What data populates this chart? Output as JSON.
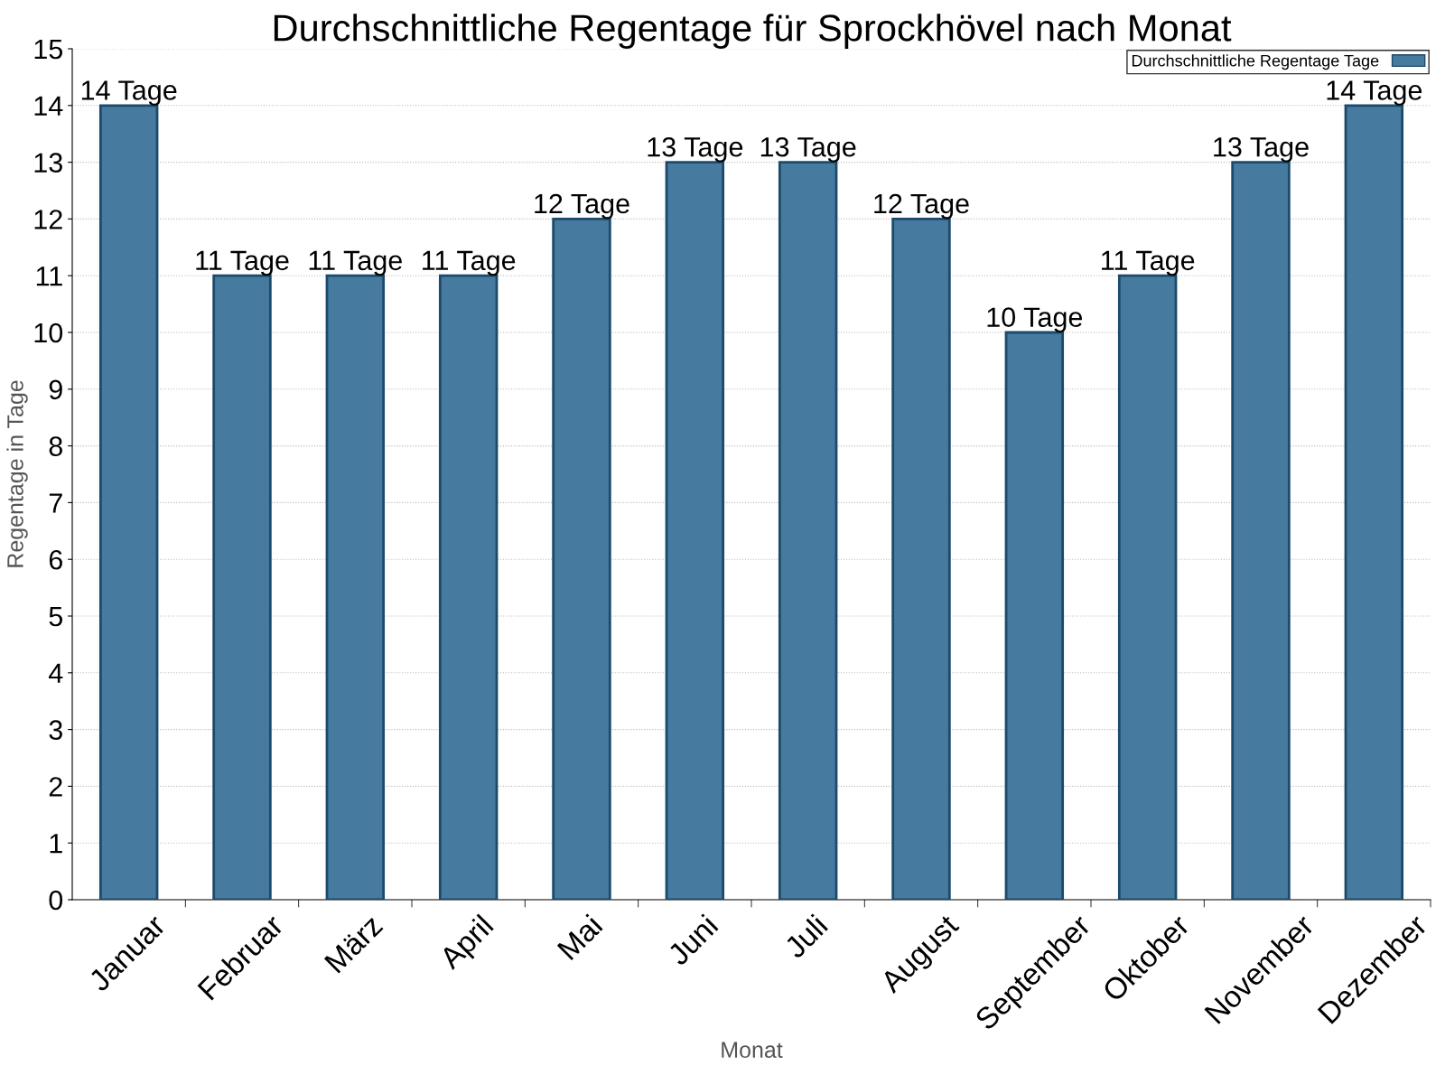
{
  "chart_data": {
    "type": "bar",
    "title": "Durchschnittliche Regentage für Sprockhövel nach Monat",
    "xlabel": "Monat",
    "ylabel": "Regentage in Tage",
    "categories": [
      "Januar",
      "Februar",
      "März",
      "April",
      "Mai",
      "Juni",
      "Juli",
      "August",
      "September",
      "Oktober",
      "November",
      "Dezember"
    ],
    "series": [
      {
        "name": "Durchschnittliche Regentage Tage",
        "color": "#467a9e",
        "values": [
          14,
          11,
          11,
          11,
          12,
          13,
          13,
          12,
          10,
          11,
          13,
          14
        ],
        "value_labels": [
          "14 Tage",
          "11 Tage",
          "11 Tage",
          "11 Tage",
          "12 Tage",
          "13 Tage",
          "13 Tage",
          "12 Tage",
          "10 Tage",
          "11 Tage",
          "13 Tage",
          "14 Tage"
        ]
      }
    ],
    "ylim": [
      0,
      15
    ],
    "yticks": [
      0,
      1,
      2,
      3,
      4,
      5,
      6,
      7,
      8,
      9,
      10,
      11,
      12,
      13,
      14,
      15
    ],
    "grid": "y",
    "legend": "top right"
  }
}
